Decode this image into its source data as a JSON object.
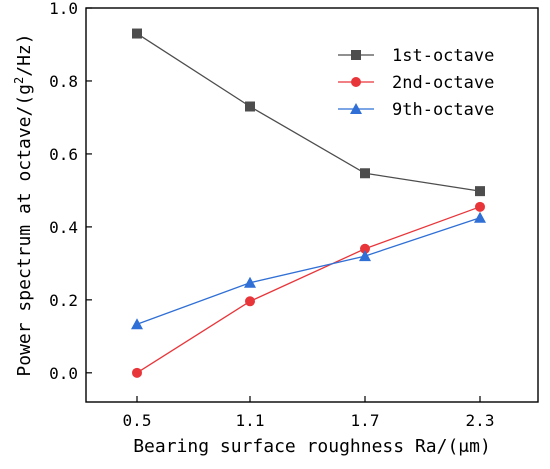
{
  "chart_data": {
    "type": "line",
    "categories": [
      "0.5",
      "1.1",
      "1.7",
      "2.3"
    ],
    "series": [
      {
        "name": "1st-octave",
        "values": [
          0.93,
          0.73,
          0.547,
          0.498
        ],
        "color": "#4d4d4d",
        "marker": "square"
      },
      {
        "name": "2nd-octave",
        "values": [
          0.0,
          0.196,
          0.34,
          0.455
        ],
        "color": "#e8353a",
        "marker": "circle"
      },
      {
        "name": "9th-octave",
        "values": [
          0.133,
          0.247,
          0.32,
          0.425
        ],
        "color": "#2f6fd6",
        "marker": "triangle"
      }
    ],
    "xlabel": "Bearing surface roughness Ra/(μm)",
    "ylabel_prefix": "Power spectrum at octave/(g",
    "ylabel_sup": "2",
    "ylabel_suffix": "/Hz)",
    "ylim": [
      -0.08,
      1.0
    ],
    "yticks": [
      0.0,
      0.2,
      0.4,
      0.6,
      0.8,
      1.0
    ],
    "ytick_labels": [
      "0.0",
      "0.2",
      "0.4",
      "0.6",
      "0.8",
      "1.0"
    ],
    "grid": false,
    "legend_position": "top-right"
  }
}
